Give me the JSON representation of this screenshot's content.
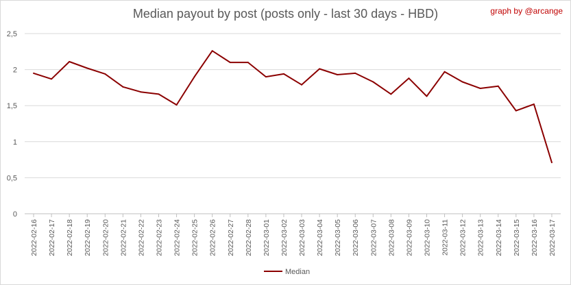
{
  "chart_data": {
    "type": "line",
    "title": "Median payout by post (posts only - last 30 days - HBD)",
    "credit": "graph by @arcange",
    "xlabel": "",
    "ylabel": "",
    "ylim": [
      0,
      2.5
    ],
    "yticks": [
      "0",
      "0,5",
      "1",
      "1,5",
      "2",
      "2,5"
    ],
    "grid": "horizontal",
    "legend_position": "bottom",
    "series_color": "#8b0000",
    "categories": [
      "2022-02-16",
      "2022-02-17",
      "2022-02-18",
      "2022-02-19",
      "2022-02-20",
      "2022-02-21",
      "2022-02-22",
      "2022-02-23",
      "2022-02-24",
      "2022-02-25",
      "2022-02-26",
      "2022-02-27",
      "2022-02-28",
      "2022-03-01",
      "2022-03-02",
      "2022-03-03",
      "2022-03-04",
      "2022-03-05",
      "2022-03-06",
      "2022-03-07",
      "2022-03-08",
      "2022-03-09",
      "2022-03-10",
      "2022-03-11",
      "2022-03-12",
      "2022-03-13",
      "2022-03-14",
      "2022-03-15",
      "2022-03-16",
      "2022-03-17"
    ],
    "series": [
      {
        "name": "Median",
        "values": [
          1.95,
          1.87,
          2.11,
          2.02,
          1.94,
          1.76,
          1.69,
          1.66,
          1.51,
          1.9,
          2.26,
          2.1,
          2.1,
          1.9,
          1.94,
          1.79,
          2.01,
          1.93,
          1.95,
          1.83,
          1.66,
          1.88,
          1.63,
          1.97,
          1.83,
          1.74,
          1.77,
          1.43,
          1.52,
          0.71
        ]
      }
    ]
  }
}
